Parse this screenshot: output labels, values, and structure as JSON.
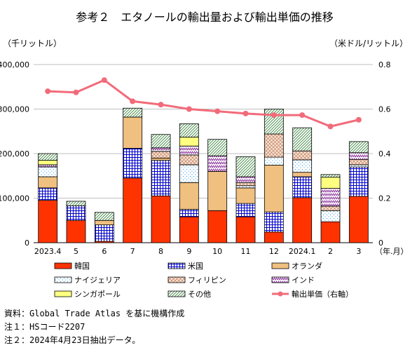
{
  "chart_data": {
    "type": "bar",
    "title": "参考２　エタノールの輸出量および輸出単価の推移",
    "ylabel_left": "（千リットル）",
    "ylabel_right": "（米ドル/リットル）",
    "xlabel": "（年.月）",
    "categories": [
      "2023.4",
      "5",
      "6",
      "7",
      "8",
      "9",
      "10",
      "11",
      "12",
      "2024.1",
      "2",
      "3"
    ],
    "ylim_left": [
      0,
      400000
    ],
    "yticks_left": [
      "0",
      "100,000",
      "200,000",
      "300,000",
      "400,000"
    ],
    "ylim_right": [
      0,
      0.8
    ],
    "yticks_right": [
      "0",
      "0.2",
      "0.4",
      "0.6",
      "0.8"
    ],
    "grid": true,
    "legend_position": "bottom",
    "stacked": true,
    "series": [
      {
        "name": "韓国",
        "color": "#ff3300",
        "pattern": "solid",
        "values": [
          95000,
          50000,
          3000,
          145000,
          105000,
          58000,
          72000,
          58000,
          24000,
          101000,
          47000,
          104000
        ]
      },
      {
        "name": "米国",
        "color": "#0000cc",
        "pattern": "grid",
        "values": [
          28000,
          33000,
          37000,
          67000,
          80000,
          17000,
          0,
          30000,
          45000,
          47000,
          0,
          66000
        ]
      },
      {
        "name": "オランダ",
        "color": "#f0c080",
        "pattern": "solid-outline",
        "values": [
          25000,
          0,
          10000,
          70000,
          5000,
          60000,
          88000,
          35000,
          105000,
          10000,
          0,
          0
        ]
      },
      {
        "name": "ナイジェリア",
        "color": "#33a0e0",
        "pattern": "dots",
        "values": [
          22000,
          0,
          0,
          0,
          0,
          40000,
          0,
          5000,
          18000,
          28000,
          25000,
          5000
        ]
      },
      {
        "name": "フィリピン",
        "color": "#c98a6a",
        "pattern": "crosshatch",
        "values": [
          0,
          0,
          0,
          0,
          15000,
          22000,
          0,
          7000,
          52000,
          20000,
          10000,
          12000
        ]
      },
      {
        "name": "インド",
        "color": "#8a2e9a",
        "pattern": "zigzag",
        "values": [
          5000,
          0,
          0,
          0,
          8000,
          20000,
          35000,
          13000,
          0,
          0,
          40000,
          15000
        ]
      },
      {
        "name": "シンガポール",
        "color": "#ffff80",
        "pattern": "solid-light",
        "values": [
          10000,
          0,
          0,
          0,
          0,
          20000,
          0,
          0,
          0,
          0,
          25000,
          0
        ]
      },
      {
        "name": "その他",
        "color": "#2e7d32",
        "pattern": "diagonal",
        "values": [
          15000,
          10000,
          18000,
          20000,
          30000,
          30000,
          37000,
          45000,
          56000,
          52000,
          6000,
          25000
        ]
      }
    ],
    "line_series": {
      "name": "輸出単価（右軸）",
      "color": "#f26b7a",
      "values": [
        0.68,
        0.675,
        0.73,
        0.635,
        0.62,
        0.6,
        0.59,
        0.58,
        0.573,
        0.573,
        0.522,
        0.552
      ]
    }
  },
  "notes": [
    "資料：Global Trade Atlas を基に機構作成",
    "注１：HSコード2207",
    "注２：2024年4月23日抽出データ。"
  ]
}
